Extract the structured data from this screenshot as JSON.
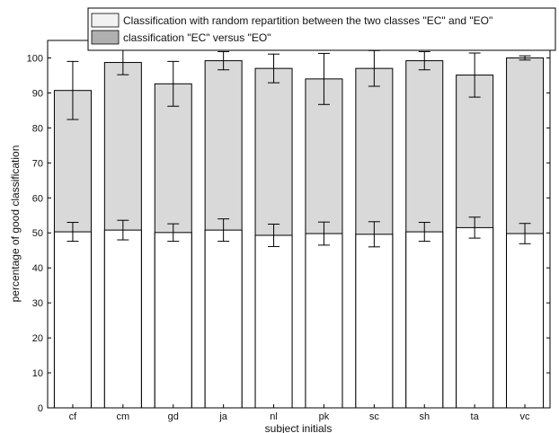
{
  "chart_data": {
    "type": "bar",
    "categories": [
      "cf",
      "cm",
      "gd",
      "ja",
      "nl",
      "pk",
      "sc",
      "sh",
      "ta",
      "vc"
    ],
    "series": [
      {
        "name": "Classification with random repartition between the two classes \"EC\" and \"EO\"",
        "values": [
          50.3,
          50.8,
          50.1,
          50.8,
          49.3,
          49.8,
          49.6,
          50.3,
          51.5,
          49.8
        ],
        "error": [
          2.7,
          2.8,
          2.5,
          3.2,
          3.2,
          3.3,
          3.6,
          2.7,
          3.0,
          2.9
        ],
        "color": "#ffffff"
      },
      {
        "name": "classification \"EC\" versus \"EO\"",
        "values": [
          90.7,
          98.7,
          92.6,
          99.2,
          97.0,
          94.0,
          97.0,
          99.2,
          95.1,
          100.0
        ],
        "error": [
          8.3,
          3.5,
          6.4,
          2.6,
          4.1,
          7.3,
          5.1,
          2.6,
          6.3,
          0.6
        ],
        "color": "#d9d9d9"
      }
    ],
    "xlabel": "subject initials",
    "ylabel": "percentage of good classification",
    "ylim": [
      0,
      105
    ],
    "yticks": [
      0,
      10,
      20,
      30,
      40,
      50,
      60,
      70,
      80,
      90,
      100
    ],
    "grid": false,
    "legend_position": "top-right"
  }
}
